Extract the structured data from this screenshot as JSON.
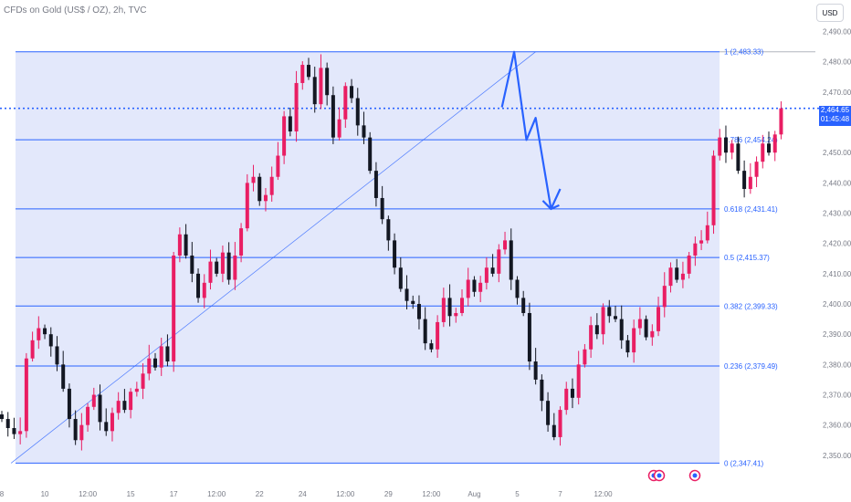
{
  "header": {
    "title": "CFDs on Gold (US$ / OZ), 2h, TVC",
    "currency_button": "USD"
  },
  "price_tag": {
    "price": "2,464.65",
    "countdown": "01:45:48"
  },
  "colors": {
    "up": "#e91e63",
    "down": "#131722",
    "fib": "#2962ff",
    "fill": "#e3e8fb",
    "axis_text": "#787b86"
  },
  "chart_data": {
    "type": "candlestick",
    "title": "CFDs on Gold (US$ / OZ), 2h, TVC",
    "ylim": [
      2340,
      2495
    ],
    "y_ticks": [
      2350,
      2360,
      2370,
      2380,
      2390,
      2400,
      2410,
      2420,
      2430,
      2440,
      2450,
      2460,
      2470,
      2480,
      2490
    ],
    "y_tick_labels": [
      "2,350.00",
      "2,360.00",
      "2,370.00",
      "2,380.00",
      "2,390.00",
      "2,400.00",
      "2,410.00",
      "2,420.00",
      "2,430.00",
      "2,440.00",
      "2,450.00",
      "2,460.00",
      "2,470.00",
      "2,480.00",
      "2,490.00"
    ],
    "x_tick_labels": [
      {
        "i": 0,
        "label": "8"
      },
      {
        "i": 7,
        "label": "10"
      },
      {
        "i": 14,
        "label": "12:00"
      },
      {
        "i": 21,
        "label": "15"
      },
      {
        "i": 28,
        "label": "17"
      },
      {
        "i": 35,
        "label": "12:00"
      },
      {
        "i": 42,
        "label": "22"
      },
      {
        "i": 49,
        "label": "24"
      },
      {
        "i": 56,
        "label": "12:00"
      },
      {
        "i": 63,
        "label": "29"
      },
      {
        "i": 70,
        "label": "12:00"
      },
      {
        "i": 77,
        "label": "Aug"
      },
      {
        "i": 84,
        "label": "5"
      },
      {
        "i": 91,
        "label": "7"
      },
      {
        "i": 98,
        "label": "12:00"
      }
    ],
    "fib_levels": [
      {
        "ratio": 1,
        "price": 2483.33,
        "label": "1 (2,483.33)"
      },
      {
        "ratio": 0.786,
        "price": 2454.24,
        "label": "0.786 (2,454.24)"
      },
      {
        "ratio": 0.618,
        "price": 2431.41,
        "label": "0.618 (2,431.41)"
      },
      {
        "ratio": 0.5,
        "price": 2415.37,
        "label": "0.5 (2,415.37)"
      },
      {
        "ratio": 0.382,
        "price": 2399.33,
        "label": "0.382 (2,399.33)"
      },
      {
        "ratio": 0.236,
        "price": 2379.49,
        "label": "0.236 (2,379.49)"
      },
      {
        "ratio": 0,
        "price": 2347.41,
        "label": "0 (2,347.41)"
      }
    ],
    "current_price": 2464.65,
    "trendline": {
      "from": {
        "i": 1.5,
        "price": 2347.41
      },
      "to": {
        "i": 87,
        "price": 2483.33
      }
    },
    "projection_path": [
      {
        "i": 81.5,
        "price": 2465
      },
      {
        "i": 83.5,
        "price": 2483.3
      },
      {
        "i": 85.5,
        "price": 2454.2
      },
      {
        "i": 87,
        "price": 2461.5
      },
      {
        "i": 89.5,
        "price": 2431.4
      },
      {
        "i": 91,
        "price": 2438
      }
    ],
    "closes": [
      2362,
      2359,
      2357,
      2358,
      2382,
      2388,
      2392,
      2390,
      2386,
      2380,
      2372,
      2362,
      2355,
      2360,
      2366,
      2370,
      2361,
      2358,
      2364,
      2368,
      2365,
      2371,
      2372,
      2377,
      2382,
      2379,
      2386,
      2381,
      2416,
      2423,
      2416,
      2410,
      2402,
      2407,
      2414,
      2410,
      2417,
      2408,
      2416,
      2425,
      2440,
      2442,
      2434,
      2436,
      2442,
      2449,
      2462,
      2457,
      2473,
      2479,
      2475,
      2466,
      2478,
      2469,
      2455,
      2461,
      2472,
      2468,
      2459,
      2455,
      2444,
      2435,
      2428,
      2421,
      2412,
      2405,
      2401,
      2400,
      2395,
      2387,
      2385,
      2394,
      2402,
      2396,
      2397,
      2402,
      2408,
      2404,
      2407,
      2412,
      2410,
      2418,
      2421,
      2408,
      2402,
      2397,
      2381,
      2375,
      2368,
      2360,
      2356,
      2365,
      2372,
      2369,
      2380,
      2385,
      2393,
      2390,
      2399,
      2396,
      2395,
      2388,
      2384,
      2392,
      2395,
      2389,
      2391,
      2399,
      2406,
      2412,
      2408,
      2410,
      2416,
      2420,
      2421,
      2426,
      2449,
      2455,
      2450,
      2453,
      2444,
      2438,
      2442,
      2447,
      2453,
      2450,
      2456,
      2464.65
    ]
  }
}
